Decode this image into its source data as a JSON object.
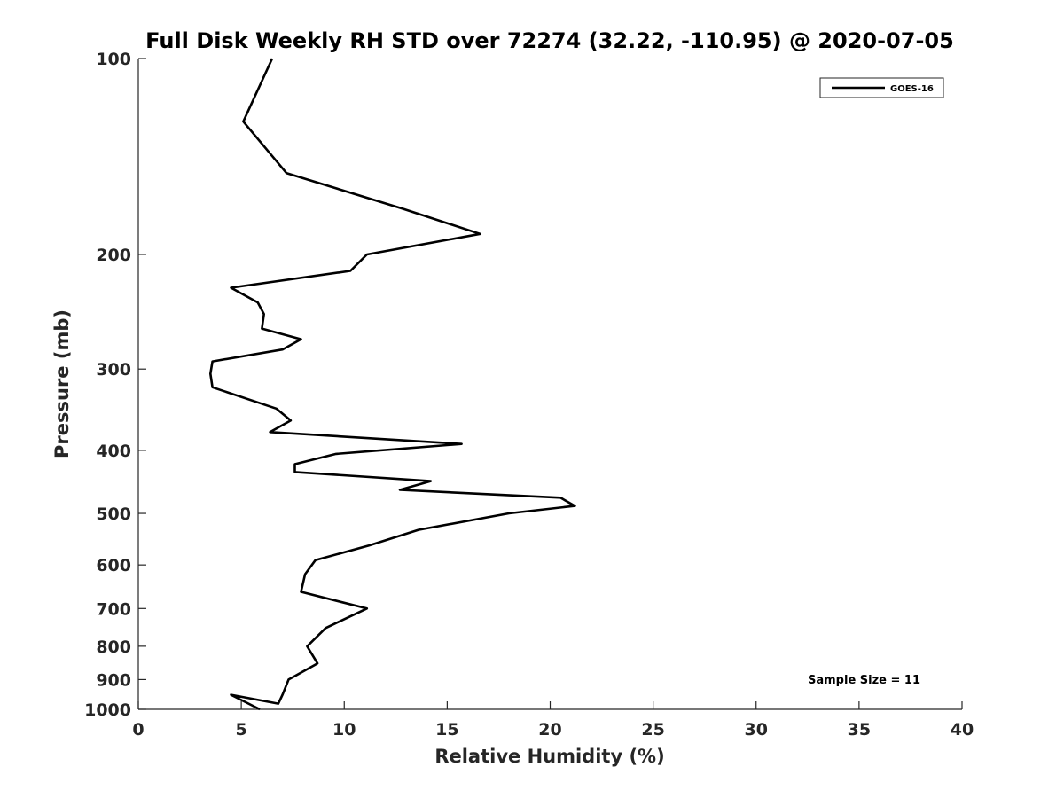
{
  "chart_data": {
    "type": "line",
    "title": "Full Disk Weekly RH STD over 72274 (32.22, -110.95) @ 2020-07-05",
    "xlabel": "Relative Humidity (%)",
    "ylabel": "Pressure (mb)",
    "xlim": [
      0,
      40
    ],
    "ylim": [
      100,
      1000
    ],
    "yscale": "log",
    "y_reversed": true,
    "grid": false,
    "legend_position": "top-right",
    "x_ticks": [
      "0",
      "5",
      "10",
      "15",
      "20",
      "25",
      "30",
      "35",
      "40"
    ],
    "y_ticks": [
      {
        "value": 100,
        "label": "100"
      },
      {
        "value": 200,
        "label": "200"
      },
      {
        "value": 300,
        "label": "300"
      },
      {
        "value": 400,
        "label": "400"
      },
      {
        "value": 500,
        "label": "500"
      },
      {
        "value": 600,
        "label": "600"
      },
      {
        "value": 700,
        "label": "700"
      },
      {
        "value": 800,
        "label": "800"
      },
      {
        "value": 900,
        "label": "900"
      },
      {
        "value": 1000,
        "label": "1000"
      }
    ],
    "series": [
      {
        "name": "GOES-16",
        "color": "#000000",
        "points": [
          [
            6.5,
            100
          ],
          [
            5.1,
            125
          ],
          [
            7.2,
            150
          ],
          [
            12.8,
            170
          ],
          [
            16.6,
            186
          ],
          [
            11.1,
            200
          ],
          [
            10.3,
            212
          ],
          [
            4.5,
            225
          ],
          [
            5.8,
            237
          ],
          [
            6.1,
            247
          ],
          [
            6.0,
            260
          ],
          [
            7.9,
            270
          ],
          [
            7.0,
            280
          ],
          [
            3.6,
            292
          ],
          [
            3.5,
            305
          ],
          [
            3.6,
            320
          ],
          [
            6.7,
            345
          ],
          [
            7.4,
            360
          ],
          [
            6.4,
            375
          ],
          [
            15.7,
            391
          ],
          [
            9.6,
            405
          ],
          [
            7.6,
            420
          ],
          [
            7.6,
            432
          ],
          [
            14.2,
            446
          ],
          [
            12.7,
            460
          ],
          [
            20.5,
            473
          ],
          [
            21.2,
            487
          ],
          [
            18.0,
            500
          ],
          [
            13.6,
            530
          ],
          [
            11.2,
            560
          ],
          [
            8.6,
            590
          ],
          [
            8.1,
            620
          ],
          [
            7.9,
            660
          ],
          [
            11.1,
            700
          ],
          [
            9.1,
            750
          ],
          [
            8.2,
            800
          ],
          [
            8.7,
            850
          ],
          [
            7.3,
            900
          ],
          [
            7.0,
            950
          ],
          [
            6.8,
            980
          ],
          [
            4.5,
            950
          ],
          [
            5.9,
            1000
          ]
        ]
      }
    ],
    "annotation": "Sample Size = 11"
  }
}
